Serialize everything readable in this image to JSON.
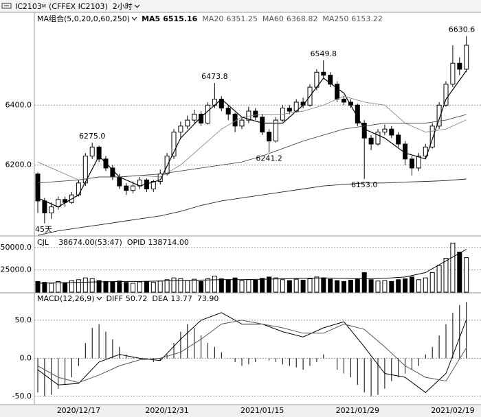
{
  "header": {
    "symbol": "IC2103",
    "symbol_sup": "M",
    "exchange": "(CFFEX IC2103)",
    "period": "2小时"
  },
  "chart_data": [
    {
      "type": "candlestick",
      "title": "MA组合(5,0,20,0,60,250)",
      "categories": [
        null,
        null,
        null,
        null,
        null,
        null,
        "2020/12/17",
        null,
        null,
        null,
        null,
        null,
        null,
        null,
        null,
        null,
        null,
        null,
        null,
        "2020/12/31",
        null,
        null,
        null,
        null,
        null,
        null,
        null,
        null,
        null,
        null,
        null,
        null,
        null,
        "2021/01/15",
        null,
        null,
        null,
        null,
        null,
        null,
        null,
        null,
        null,
        null,
        null,
        null,
        null,
        "2021/01/29",
        null,
        null,
        null,
        null,
        null,
        null,
        null,
        null,
        null,
        null,
        null,
        null,
        null,
        "2021/02/19",
        null,
        null
      ],
      "ohlc": [
        [
          6170,
          6175,
          6040,
          6080
        ],
        [
          6080,
          6090,
          6005,
          6040
        ],
        [
          6040,
          6075,
          6020,
          6060
        ],
        [
          6060,
          6095,
          6050,
          6085
        ],
        [
          6085,
          6095,
          6060,
          6075
        ],
        [
          6075,
          6110,
          6070,
          6100
        ],
        [
          6100,
          6150,
          6095,
          6140
        ],
        [
          6140,
          6240,
          6130,
          6230
        ],
        [
          6230,
          6275,
          6220,
          6260
        ],
        [
          6260,
          6265,
          6210,
          6220
        ],
        [
          6220,
          6230,
          6180,
          6190
        ],
        [
          6190,
          6200,
          6150,
          6160
        ],
        [
          6160,
          6170,
          6120,
          6130
        ],
        [
          6130,
          6140,
          6100,
          6115
        ],
        [
          6115,
          6145,
          6105,
          6130
        ],
        [
          6130,
          6160,
          6120,
          6150
        ],
        [
          6150,
          6155,
          6110,
          6120
        ],
        [
          6120,
          6150,
          6110,
          6145
        ],
        [
          6145,
          6185,
          6135,
          6170
        ],
        [
          6170,
          6240,
          6165,
          6230
        ],
        [
          6230,
          6320,
          6220,
          6310
        ],
        [
          6310,
          6345,
          6290,
          6330
        ],
        [
          6330,
          6365,
          6320,
          6350
        ],
        [
          6350,
          6385,
          6340,
          6370
        ],
        [
          6370,
          6380,
          6330,
          6340
        ],
        [
          6340,
          6410,
          6335,
          6400
        ],
        [
          6400,
          6473.8,
          6390,
          6420
        ],
        [
          6420,
          6430,
          6380,
          6390
        ],
        [
          6390,
          6400,
          6350,
          6370
        ],
        [
          6370,
          6375,
          6310,
          6330
        ],
        [
          6330,
          6360,
          6320,
          6350
        ],
        [
          6350,
          6395,
          6340,
          6380
        ],
        [
          6380,
          6390,
          6350,
          6360
        ],
        [
          6360,
          6370,
          6300,
          6310
        ],
        [
          6310,
          6320,
          6241.2,
          6280
        ],
        [
          6280,
          6360,
          6275,
          6350
        ],
        [
          6350,
          6400,
          6345,
          6390
        ],
        [
          6390,
          6400,
          6370,
          6380
        ],
        [
          6380,
          6420,
          6375,
          6410
        ],
        [
          6410,
          6425,
          6390,
          6400
        ],
        [
          6400,
          6470,
          6395,
          6460
        ],
        [
          6460,
          6520,
          6450,
          6510
        ],
        [
          6510,
          6549.8,
          6490,
          6500
        ],
        [
          6500,
          6510,
          6460,
          6470
        ],
        [
          6470,
          6480,
          6410,
          6420
        ],
        [
          6420,
          6430,
          6400,
          6410
        ],
        [
          6410,
          6420,
          6390,
          6400
        ],
        [
          6400,
          6405,
          6330,
          6340
        ],
        [
          6340,
          6350,
          6153,
          6290
        ],
        [
          6290,
          6300,
          6250,
          6270
        ],
        [
          6270,
          6320,
          6265,
          6310
        ],
        [
          6310,
          6335,
          6300,
          6320
        ],
        [
          6320,
          6330,
          6290,
          6300
        ],
        [
          6300,
          6310,
          6260,
          6270
        ],
        [
          6270,
          6280,
          6200,
          6220
        ],
        [
          6220,
          6230,
          6165,
          6190
        ],
        [
          6190,
          6240,
          6180,
          6230
        ],
        [
          6230,
          6270,
          6220,
          6260
        ],
        [
          6260,
          6340,
          6255,
          6330
        ],
        [
          6330,
          6410,
          6320,
          6400
        ],
        [
          6400,
          6480,
          6395,
          6470
        ],
        [
          6470,
          6600,
          6460,
          6540
        ],
        [
          6540,
          6560,
          6500,
          6520
        ],
        [
          6520,
          6630.6,
          6510,
          6600
        ]
      ],
      "x": [
        0,
        3,
        6,
        9,
        12,
        15,
        18,
        21,
        24,
        27,
        30,
        33,
        36,
        39,
        42,
        45,
        48,
        51,
        54,
        57,
        60,
        63
      ],
      "series": [
        {
          "name": "MA5",
          "last_label": "6515.16",
          "color": "#000000",
          "values": [
            6090,
            6060,
            6100,
            6230,
            6160,
            6130,
            6150,
            6290,
            6360,
            6420,
            6360,
            6340,
            6340,
            6400,
            6490,
            6440,
            6320,
            6290,
            6240,
            6220,
            6420,
            6515.16
          ]
        },
        {
          "name": "MA20",
          "last_label": "6351.25",
          "color": "#8a8a8a",
          "values": [
            6210,
            6180,
            6150,
            6160,
            6160,
            6165,
            6160,
            6200,
            6260,
            6320,
            6360,
            6370,
            6370,
            6380,
            6400,
            6430,
            6410,
            6400,
            6340,
            6310,
            6320,
            6351.25
          ]
        },
        {
          "name": "MA60",
          "last_label": "6368.82",
          "color": "#4a4a4a",
          "values": [
            6140,
            6145,
            6150,
            6160,
            6160,
            6165,
            6170,
            6180,
            6190,
            6200,
            6210,
            6230,
            6255,
            6280,
            6300,
            6320,
            6330,
            6340,
            6340,
            6340,
            6350,
            6368.82
          ]
        },
        {
          "name": "MA250",
          "last_label": "6153.22",
          "color": "#222222",
          "values": [
            5965,
            5980,
            5990,
            6000,
            6010,
            6020,
            6030,
            6045,
            6065,
            6080,
            6090,
            6100,
            6110,
            6120,
            6130,
            6135,
            6140,
            6140,
            6143,
            6145,
            6148,
            6153.22
          ]
        }
      ],
      "ylim": [
        5963,
        6710
      ],
      "yticks": [
        {
          "value": 6200,
          "label": "6200.0"
        },
        {
          "value": 6400,
          "label": "6400.0"
        }
      ],
      "grid": true,
      "annotations": [
        {
          "value": 6275,
          "label": "6275.0"
        },
        6473.8,
        6241.2,
        6549.8,
        {
          "value": 6153,
          "label": "6153.0"
        },
        6630.6
      ],
      "note": "45天"
    },
    {
      "type": "bar",
      "title": "CJL",
      "info": [
        "38674.00(53:47)",
        "OPID 138714.00"
      ],
      "values": [
        12000,
        11000,
        10000,
        12000,
        10500,
        13000,
        14000,
        16000,
        15000,
        13000,
        12000,
        11500,
        12500,
        11000,
        10000,
        11500,
        12000,
        11000,
        12500,
        14000,
        16000,
        15000,
        13000,
        14500,
        12000,
        15000,
        18000,
        15000,
        14000,
        16000,
        13000,
        14000,
        13500,
        15500,
        17000,
        16000,
        14000,
        13000,
        14500,
        13500,
        15000,
        17000,
        16000,
        14500,
        13000,
        12000,
        13500,
        15000,
        22000,
        14000,
        12500,
        13000,
        12000,
        14000,
        15000,
        17000,
        14000,
        16000,
        22000,
        30000,
        38000,
        55000,
        45000,
        38674
      ],
      "line": {
        "color": "#000000",
        "values": [
          10000,
          10500,
          11000,
          11500,
          12000,
          12000,
          12500,
          13000,
          13500,
          14000,
          14000,
          14500,
          15000,
          15500,
          16000,
          15500,
          15000,
          15500,
          17000,
          22000,
          35000,
          48000
        ]
      },
      "ylim": [
        0,
        63000
      ],
      "yticks": [
        {
          "value": 25000,
          "label": "25000.0"
        },
        {
          "value": 50000,
          "label": "50000.0"
        }
      ],
      "grid": true
    },
    {
      "type": "macd",
      "title": "MACD(12,26,9)",
      "hist_label": "73.90",
      "hist": [
        -45,
        -50,
        -48,
        -40,
        -35,
        -25,
        -10,
        20,
        40,
        45,
        35,
        25,
        15,
        5,
        2,
        0,
        -2,
        -5,
        -3,
        5,
        20,
        35,
        45,
        40,
        30,
        20,
        15,
        8,
        0,
        -5,
        -10,
        -8,
        -5,
        0,
        -3,
        -5,
        -8,
        -10,
        -12,
        -15,
        -10,
        -5,
        5,
        0,
        -15,
        -20,
        -25,
        -35,
        -45,
        -50,
        -48,
        -40,
        -30,
        -25,
        -20,
        -15,
        -10,
        5,
        15,
        30,
        45,
        60,
        70,
        73.9
      ],
      "series": [
        {
          "name": "DIFF",
          "last_label": "50.72",
          "color": "#000000",
          "values": [
            -15,
            -35,
            -33,
            -5,
            5,
            0,
            -3,
            25,
            50,
            60,
            45,
            45,
            35,
            28,
            40,
            48,
            15,
            -20,
            -25,
            -45,
            -20,
            50.72
          ]
        },
        {
          "name": "DEA",
          "last_label": "13.77",
          "color": "#555555",
          "values": [
            -10,
            -25,
            -32,
            -22,
            -10,
            -2,
            0,
            8,
            25,
            45,
            50,
            45,
            40,
            33,
            33,
            45,
            38,
            15,
            -10,
            -25,
            -30,
            13.77
          ]
        }
      ],
      "ylim": [
        -61,
        86
      ],
      "yticks": [
        {
          "value": -50,
          "label": "-50.0"
        },
        {
          "value": 0,
          "label": "0.0"
        },
        {
          "value": 50,
          "label": "50.0"
        }
      ],
      "grid": true
    }
  ]
}
